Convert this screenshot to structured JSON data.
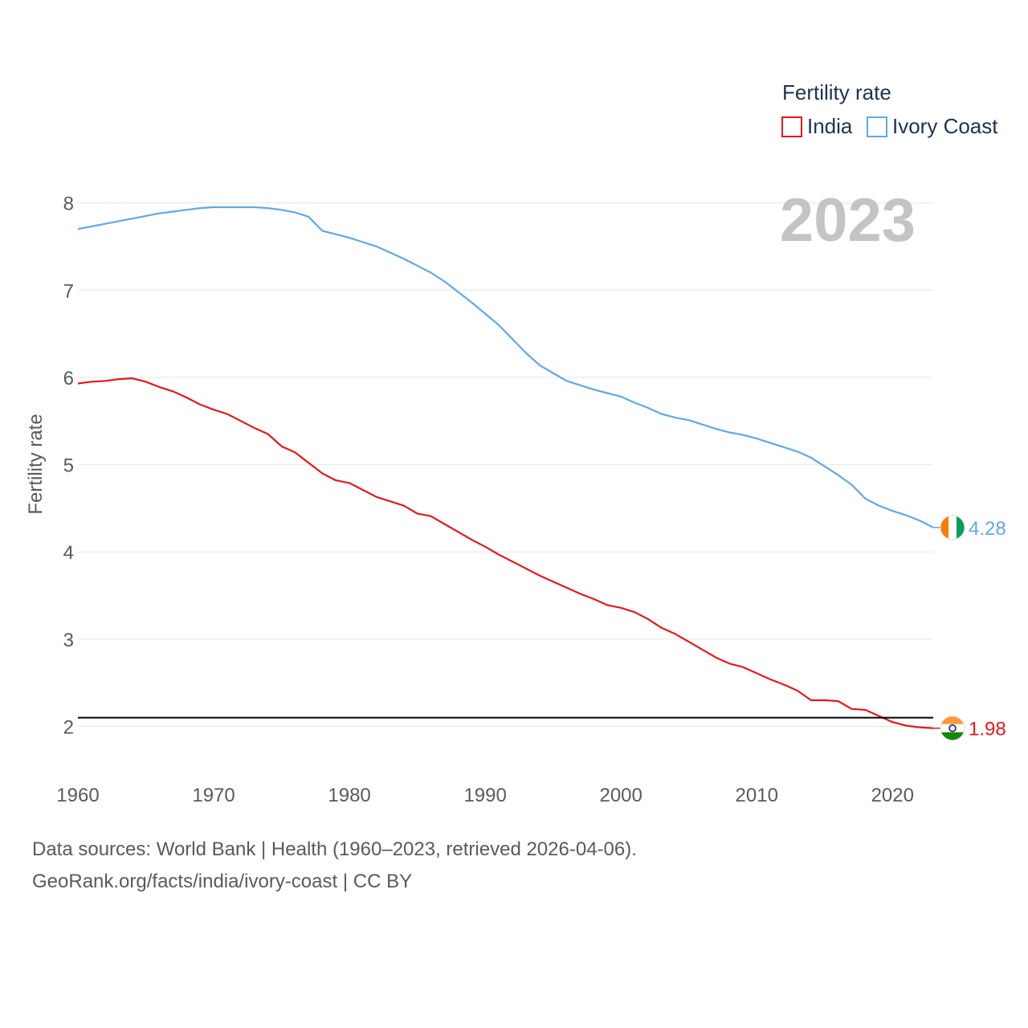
{
  "chart_data": {
    "type": "line",
    "title_year": "2023",
    "ylabel": "Fertility rate",
    "xlabel": "",
    "xlim": [
      1960,
      2023
    ],
    "ylim": [
      1.6,
      8.3
    ],
    "x_ticks": [
      1960,
      1970,
      1980,
      1990,
      2000,
      2010,
      2020
    ],
    "y_ticks": [
      2,
      3,
      4,
      5,
      6,
      7,
      8
    ],
    "reference_line": 2.1,
    "legend": {
      "title": "Fertility rate",
      "placement": "top-right"
    },
    "series": [
      {
        "name": "India",
        "color": "#e31a1c",
        "end_label": "1.98",
        "flag": "india-flag",
        "x": [
          1960,
          1961,
          1962,
          1963,
          1964,
          1965,
          1966,
          1967,
          1968,
          1969,
          1970,
          1971,
          1972,
          1973,
          1974,
          1975,
          1976,
          1977,
          1978,
          1979,
          1980,
          1981,
          1982,
          1983,
          1984,
          1985,
          1986,
          1987,
          1988,
          1989,
          1990,
          1991,
          1992,
          1993,
          1994,
          1995,
          1996,
          1997,
          1998,
          1999,
          2000,
          2001,
          2002,
          2003,
          2004,
          2005,
          2006,
          2007,
          2008,
          2009,
          2010,
          2011,
          2012,
          2013,
          2014,
          2015,
          2016,
          2017,
          2018,
          2019,
          2020,
          2021,
          2022,
          2023
        ],
        "values": [
          5.93,
          5.95,
          5.96,
          5.98,
          5.99,
          5.95,
          5.89,
          5.84,
          5.77,
          5.69,
          5.63,
          5.58,
          5.5,
          5.42,
          5.35,
          5.21,
          5.14,
          5.02,
          4.9,
          4.82,
          4.79,
          4.71,
          4.63,
          4.58,
          4.53,
          4.44,
          4.41,
          4.32,
          4.23,
          4.14,
          4.06,
          3.97,
          3.89,
          3.81,
          3.73,
          3.66,
          3.59,
          3.52,
          3.46,
          3.39,
          3.36,
          3.31,
          3.23,
          3.13,
          3.06,
          2.97,
          2.88,
          2.79,
          2.72,
          2.68,
          2.61,
          2.54,
          2.48,
          2.41,
          2.3,
          2.3,
          2.29,
          2.2,
          2.19,
          2.12,
          2.05,
          2.01,
          1.99,
          1.98
        ]
      },
      {
        "name": "Ivory Coast",
        "color": "#62a8e5",
        "end_label": "4.28",
        "flag": "ivory-coast-flag",
        "x": [
          1960,
          1961,
          1962,
          1963,
          1964,
          1965,
          1966,
          1967,
          1968,
          1969,
          1970,
          1971,
          1972,
          1973,
          1974,
          1975,
          1976,
          1977,
          1978,
          1979,
          1980,
          1981,
          1982,
          1983,
          1984,
          1985,
          1986,
          1987,
          1988,
          1989,
          1990,
          1991,
          1992,
          1993,
          1994,
          1995,
          1996,
          1997,
          1998,
          1999,
          2000,
          2001,
          2002,
          2003,
          2004,
          2005,
          2006,
          2007,
          2008,
          2009,
          2010,
          2011,
          2012,
          2013,
          2014,
          2015,
          2016,
          2017,
          2018,
          2019,
          2020,
          2021,
          2022,
          2023
        ],
        "values": [
          7.7,
          7.73,
          7.76,
          7.79,
          7.82,
          7.85,
          7.88,
          7.9,
          7.92,
          7.94,
          7.95,
          7.95,
          7.95,
          7.95,
          7.94,
          7.92,
          7.89,
          7.84,
          7.68,
          7.64,
          7.6,
          7.55,
          7.5,
          7.43,
          7.36,
          7.28,
          7.2,
          7.1,
          6.98,
          6.86,
          6.73,
          6.6,
          6.44,
          6.28,
          6.14,
          6.05,
          5.96,
          5.91,
          5.86,
          5.82,
          5.78,
          5.71,
          5.65,
          5.58,
          5.54,
          5.51,
          5.46,
          5.41,
          5.37,
          5.34,
          5.3,
          5.25,
          5.2,
          5.15,
          5.08,
          4.98,
          4.88,
          4.77,
          4.61,
          4.53,
          4.47,
          4.42,
          4.36,
          4.28
        ]
      }
    ]
  },
  "footer": {
    "line1": "Data sources: World Bank | Health (1960–2023, retrieved 2026-04-06).",
    "line2": "GeoRank.org/facts/india/ivory-coast | CC BY"
  }
}
